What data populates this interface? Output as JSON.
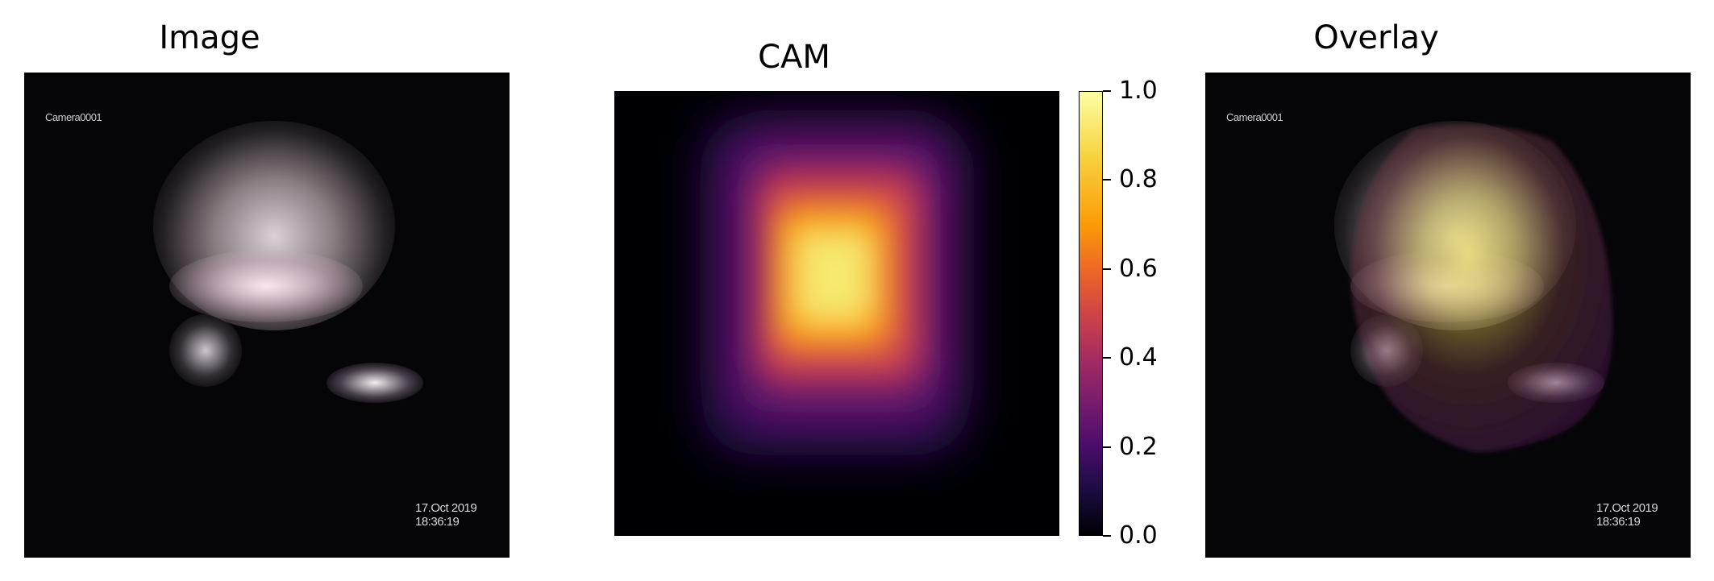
{
  "panels": {
    "image": {
      "title": "Image",
      "camera_label": "Camera0001",
      "timestamp": "17.Oct 2019  18:36:19"
    },
    "cam": {
      "title": "CAM"
    },
    "overlay": {
      "title": "Overlay",
      "camera_label": "Camera0001",
      "timestamp": "17.Oct 2019  18:36:19"
    }
  },
  "colorbar": {
    "colormap": "inferno",
    "ticks": [
      "0.0",
      "0.2",
      "0.4",
      "0.6",
      "0.8",
      "1.0"
    ]
  }
}
